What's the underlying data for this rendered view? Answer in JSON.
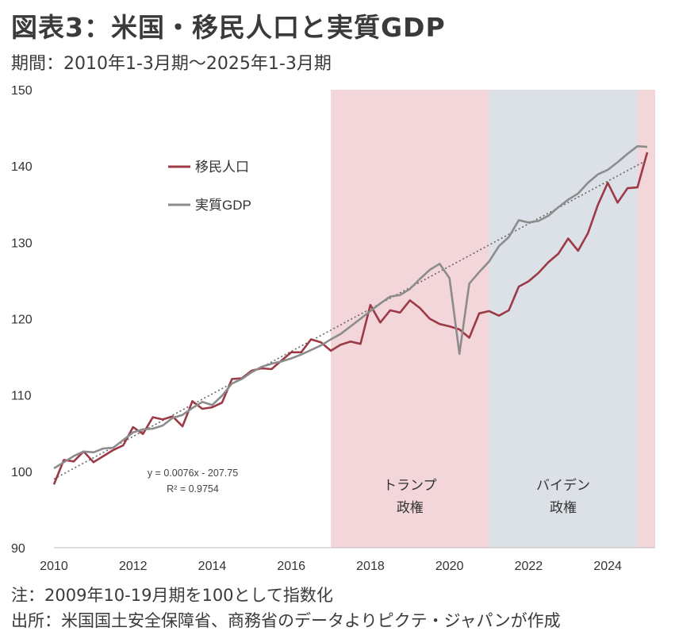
{
  "title": "図表3：米国・移民人口と実質GDP",
  "subtitle": "期間：2010年1-3月期～2025年1-3月期",
  "notes": {
    "note": "注：2009年10-19月期を100として指数化",
    "source": "出所：米国国土安全保障省、商務省のデータよりピクテ・ジャパンが作成"
  },
  "chart_data": {
    "type": "line",
    "title": "図表3：米国・移民人口と実質GDP",
    "ylim": [
      90,
      150
    ],
    "yticks": [
      90,
      100,
      110,
      120,
      130,
      140,
      150
    ],
    "xlim": [
      2010,
      2025.2
    ],
    "xticks": [
      2010,
      2012,
      2014,
      2016,
      2018,
      2020,
      2022,
      2024
    ],
    "grid": false,
    "legend": "upper-left",
    "colors": {
      "immigrant": "#9c3a46",
      "gdp": "#8c8c8c",
      "trend": "#666666",
      "trump_band": "#f2d6d9",
      "biden_band": "#dce1e8"
    },
    "periods": [
      {
        "name": "トランプ",
        "label2": "政権",
        "start": 2017.0,
        "end": 2021.0,
        "color": "#f2d6d9"
      },
      {
        "name": "バイデン",
        "label2": "政権",
        "start": 2021.0,
        "end": 2024.75,
        "color": "#dce1e8"
      },
      {
        "name": "",
        "label2": "",
        "start": 2024.75,
        "end": 2025.2,
        "color": "#f2d6d9"
      }
    ],
    "trendline": {
      "equation": "y = 0.0076x - 207.75",
      "r2": "R² = 0.9754",
      "y_start": 99.0,
      "y_end": 140.8
    },
    "x": [
      2010.0,
      2010.25,
      2010.5,
      2010.75,
      2011.0,
      2011.25,
      2011.5,
      2011.75,
      2012.0,
      2012.25,
      2012.5,
      2012.75,
      2013.0,
      2013.25,
      2013.5,
      2013.75,
      2014.0,
      2014.25,
      2014.5,
      2014.75,
      2015.0,
      2015.25,
      2015.5,
      2015.75,
      2016.0,
      2016.25,
      2016.5,
      2016.75,
      2017.0,
      2017.25,
      2017.5,
      2017.75,
      2018.0,
      2018.25,
      2018.5,
      2018.75,
      2019.0,
      2019.25,
      2019.5,
      2019.75,
      2020.0,
      2020.25,
      2020.5,
      2020.75,
      2021.0,
      2021.25,
      2021.5,
      2021.75,
      2022.0,
      2022.25,
      2022.5,
      2022.75,
      2023.0,
      2023.25,
      2023.5,
      2023.75,
      2024.0,
      2024.25,
      2024.5,
      2024.75,
      2025.0
    ],
    "series": [
      {
        "name": "移民人口",
        "key": "immigrant",
        "values": [
          98.3,
          101.5,
          101.3,
          102.6,
          101.2,
          102.0,
          102.8,
          103.4,
          105.8,
          104.9,
          107.1,
          106.8,
          107.2,
          105.9,
          109.2,
          108.2,
          108.4,
          109.0,
          112.1,
          112.2,
          113.2,
          113.5,
          113.4,
          114.5,
          115.6,
          115.6,
          117.3,
          116.9,
          115.8,
          116.6,
          117.0,
          116.7,
          121.8,
          119.5,
          121.1,
          120.8,
          122.4,
          121.4,
          120.0,
          119.3,
          119.0,
          118.6,
          117.5,
          120.7,
          121.0,
          120.4,
          121.1,
          124.2,
          124.9,
          126.0,
          127.4,
          128.5,
          130.5,
          128.9,
          131.2,
          134.9,
          137.8,
          135.2,
          137.1,
          137.2,
          141.8
        ]
      },
      {
        "name": "実質GDP",
        "key": "gdp",
        "values": [
          100.4,
          101.2,
          102.0,
          102.6,
          102.5,
          103.0,
          103.1,
          104.1,
          105.1,
          105.5,
          105.6,
          106.0,
          107.0,
          107.4,
          108.3,
          109.1,
          108.7,
          109.9,
          111.5,
          112.1,
          113.0,
          113.7,
          114.1,
          114.4,
          114.8,
          115.3,
          115.9,
          116.5,
          117.3,
          118.0,
          119.0,
          120.0,
          121.0,
          122.0,
          122.9,
          123.1,
          123.9,
          125.2,
          126.4,
          127.2,
          125.3,
          115.4,
          124.6,
          126.1,
          127.5,
          129.5,
          130.7,
          132.9,
          132.6,
          132.8,
          133.5,
          134.6,
          135.6,
          136.4,
          137.8,
          138.9,
          139.5,
          140.5,
          141.6,
          142.6,
          142.5
        ]
      }
    ]
  }
}
